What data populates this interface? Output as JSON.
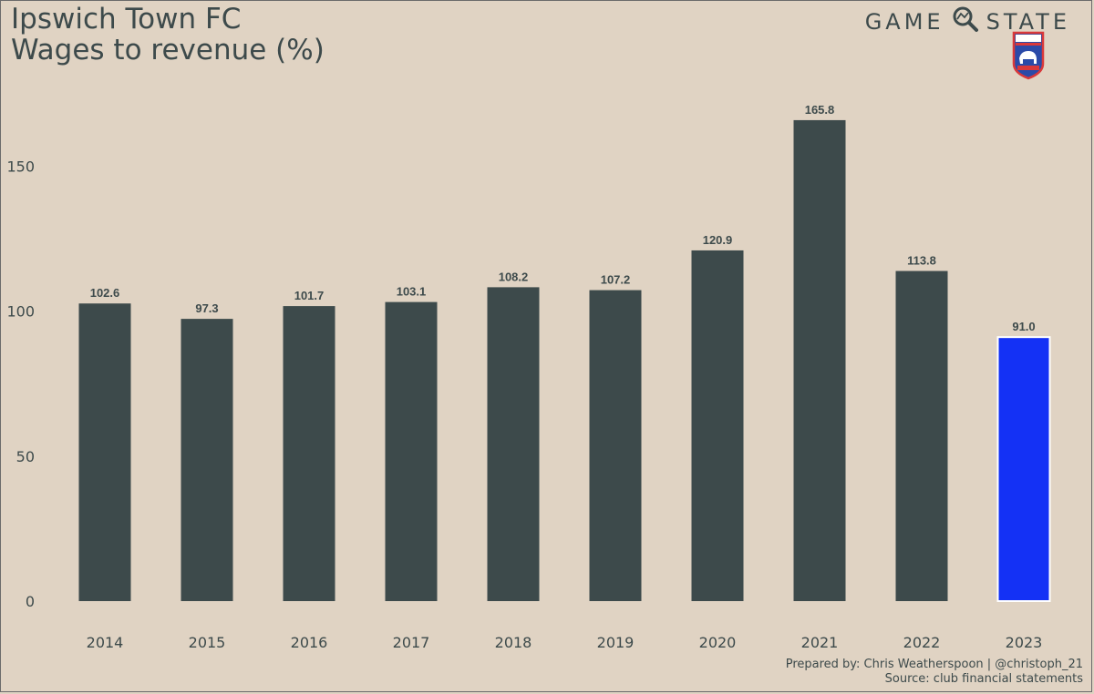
{
  "header": {
    "title_line1": "Ipswich Town FC",
    "title_line2": "Wages to revenue (%)"
  },
  "brand": {
    "left": "GAME",
    "right": "STATE",
    "icon": "magnifier-icon",
    "crest": "ipswich-town-crest-icon"
  },
  "footer": {
    "line1": "Prepared by: Chris Weatherspoon | @christoph_21",
    "line2": "Source: club financial statements"
  },
  "colors": {
    "background": "#e0d3c3",
    "bar": "#3d4a4b",
    "highlight": "#1431f5",
    "text": "#3d4a4b"
  },
  "chart_data": {
    "type": "bar",
    "title": "Wages to revenue (%)",
    "categories": [
      "2014",
      "2015",
      "2016",
      "2017",
      "2018",
      "2019",
      "2020",
      "2021",
      "2022",
      "2023"
    ],
    "values": [
      102.6,
      97.3,
      101.7,
      103.1,
      108.2,
      107.2,
      120.9,
      165.8,
      113.8,
      91.0
    ],
    "data_labels": [
      "102.6",
      "97.3",
      "101.7",
      "103.1",
      "108.2",
      "107.2",
      "120.9",
      "165.8",
      "113.8",
      "91.0"
    ],
    "highlight_index": 9,
    "yticks": [
      0,
      50,
      100,
      150
    ],
    "ytick_labels": [
      "0",
      "50",
      "100",
      "150"
    ],
    "ylim": [
      0,
      175
    ],
    "grid": false,
    "legend": "none"
  }
}
